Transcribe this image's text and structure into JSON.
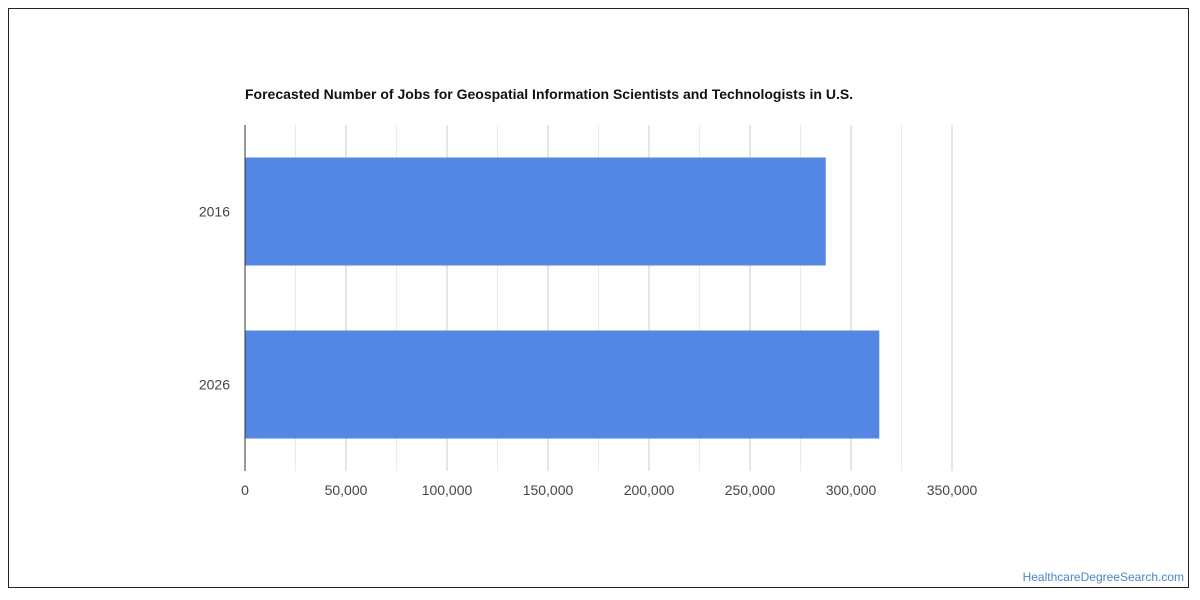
{
  "chart_data": {
    "type": "bar",
    "orientation": "horizontal",
    "title": "Forecasted Number of Jobs for Geospatial Information Scientists and Technologists in U.S.",
    "xlabel": "",
    "ylabel": "",
    "categories": [
      "2016",
      "2026"
    ],
    "values": [
      287500,
      314000
    ],
    "xlim": [
      0,
      350000
    ],
    "xticks": [
      0,
      50000,
      100000,
      150000,
      200000,
      250000,
      300000,
      350000
    ],
    "xtick_labels": [
      "0",
      "50,000",
      "100,000",
      "150,000",
      "200,000",
      "250,000",
      "300,000",
      "350,000"
    ],
    "grid": true,
    "legend": "none",
    "bar_color": "#5387e3"
  },
  "watermark": "HealthcareDegreeSearch.com"
}
